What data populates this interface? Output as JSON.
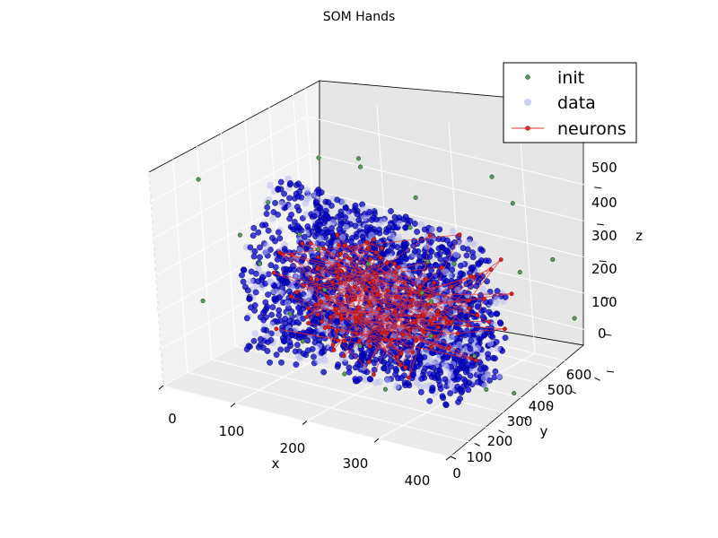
{
  "chart_data": {
    "type": "scatter",
    "projection": "3d",
    "title": "SOM Hands",
    "xlabel": "x",
    "ylabel": "y",
    "zlabel": "z",
    "xlim": [
      0,
      400
    ],
    "ylim": [
      0,
      650
    ],
    "zlim": [
      0,
      580
    ],
    "x_ticks": [
      "0",
      "100",
      "200",
      "300",
      "400"
    ],
    "y_ticks": [
      "0",
      "100",
      "200",
      "300",
      "400",
      "500",
      "600"
    ],
    "z_ticks": [
      "0",
      "100",
      "200",
      "300",
      "400",
      "500"
    ],
    "grid": true,
    "legend_position": "top-right",
    "legend": [
      {
        "label": "init",
        "color": "#5a9a5a",
        "marker": "dot"
      },
      {
        "label": "data",
        "color": "#b8bcf0",
        "marker": "circle"
      },
      {
        "label": "neurons",
        "color": "#e03030",
        "marker": "line-dot"
      }
    ],
    "series": [
      {
        "name": "init",
        "color": "#5a9a5a",
        "points": [
          [
            10,
            320,
            300
          ],
          [
            40,
            560,
            80
          ],
          [
            60,
            300,
            420
          ],
          [
            90,
            600,
            160
          ],
          [
            120,
            80,
            360
          ],
          [
            150,
            420,
            540
          ],
          [
            180,
            220,
            40
          ],
          [
            210,
            500,
            260
          ],
          [
            240,
            120,
            180
          ],
          [
            270,
            610,
            480
          ],
          [
            300,
            40,
            120
          ],
          [
            330,
            360,
            20
          ],
          [
            360,
            180,
            440
          ],
          [
            380,
            520,
            340
          ],
          [
            20,
            140,
            520
          ],
          [
            70,
            460,
            240
          ],
          [
            110,
            260,
            80
          ],
          [
            160,
            580,
            300
          ],
          [
            200,
            20,
            500
          ],
          [
            250,
            380,
            120
          ],
          [
            290,
            640,
            220
          ],
          [
            340,
            100,
            380
          ],
          [
            390,
            300,
            60
          ],
          [
            30,
            600,
            420
          ],
          [
            130,
            160,
            200
          ],
          [
            220,
            440,
            460
          ],
          [
            310,
            220,
            300
          ],
          [
            370,
            620,
            140
          ],
          [
            50,
            40,
            240
          ],
          [
            180,
            340,
            560
          ],
          [
            260,
            520,
            20
          ],
          [
            350,
            460,
            500
          ]
        ]
      },
      {
        "name": "data",
        "color": "#0000cc",
        "cluster": {
          "x": [
            40,
            340
          ],
          "y": [
            150,
            560
          ],
          "z": [
            20,
            450
          ]
        }
      },
      {
        "name": "neurons",
        "color": "#d42020",
        "cluster": {
          "x": [
            80,
            320
          ],
          "y": [
            200,
            520
          ],
          "z": [
            40,
            400
          ]
        }
      }
    ]
  }
}
